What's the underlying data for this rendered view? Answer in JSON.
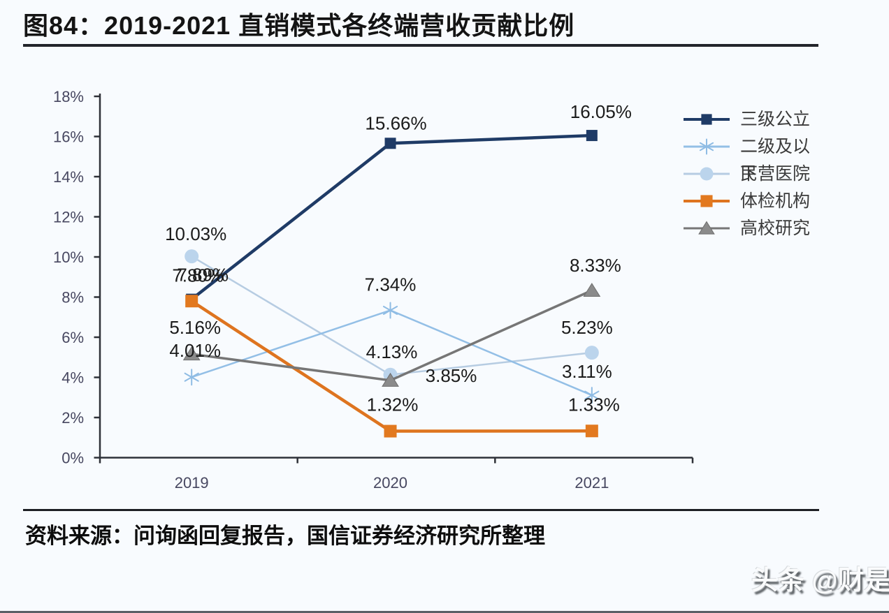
{
  "page": {
    "title": "图84：2019-2021 直销模式各终端营收贡献比例",
    "source": "资料来源：问询函回复报告，国信证券经济研究所整理",
    "watermark": "头条 @财是"
  },
  "chart_data": {
    "type": "line",
    "title": "2019-2021 直销模式各终端营收贡献比例",
    "categories": [
      "2019",
      "2020",
      "2021"
    ],
    "ylim": [
      0,
      18
    ],
    "ytick_step": 2,
    "yticks": [
      "0%",
      "2%",
      "4%",
      "6%",
      "8%",
      "10%",
      "12%",
      "14%",
      "16%",
      "18%"
    ],
    "grid": false,
    "legend_position": "right",
    "axis_color": "#2e3138",
    "tick_label_color": "#474760",
    "value_label_color": "#1b1b1b",
    "series": [
      {
        "name": "三级公立",
        "color": "#1F3B66",
        "marker": "square",
        "marker_color": "#1F3B66",
        "values": [
          7.89,
          15.66,
          16.05
        ],
        "labels": [
          "7.89%",
          "15.66%",
          "16.05%"
        ],
        "label_offsets": [
          [
            16,
            -26
          ],
          [
            8,
            -20
          ],
          [
            13,
            -25
          ]
        ]
      },
      {
        "name": "二级及以下",
        "color": "#93BFE6",
        "marker": "asterisk",
        "marker_color": "#8FBCE4",
        "values": [
          4.01,
          7.34,
          3.11
        ],
        "labels": [
          "4.01%",
          "7.34%",
          "3.11%"
        ],
        "label_offsets": [
          [
            5,
            -29
          ],
          [
            0,
            -28
          ],
          [
            -7,
            -25
          ]
        ]
      },
      {
        "name": "民营医院",
        "color": "#B6CCE2",
        "marker": "circle",
        "marker_color": "#BBD4EC",
        "values": [
          10.03,
          4.13,
          5.23
        ],
        "labels": [
          "10.03%",
          "4.13%",
          "5.23%"
        ],
        "label_offsets": [
          [
            6,
            -23
          ],
          [
            2,
            -24
          ],
          [
            -7,
            -27
          ]
        ]
      },
      {
        "name": "体检机构",
        "color": "#DE741F",
        "marker": "square",
        "marker_color": "#E2791F",
        "values": [
          7.8,
          1.32,
          1.33
        ],
        "labels": [
          "7.80%",
          "1.32%",
          "1.33%"
        ],
        "label_offsets": [
          [
            9,
            -28
          ],
          [
            3,
            -29
          ],
          [
            3,
            -29
          ]
        ]
      },
      {
        "name": "高校研究",
        "color": "#767676",
        "marker": "triangle",
        "marker_color": "#8B8B8B",
        "values": [
          5.16,
          3.85,
          8.33
        ],
        "labels": [
          "5.16%",
          "3.85%",
          "8.33%"
        ],
        "label_offsets": [
          [
            5,
            -29
          ],
          [
            87,
            2
          ],
          [
            5,
            -27
          ]
        ]
      }
    ]
  }
}
